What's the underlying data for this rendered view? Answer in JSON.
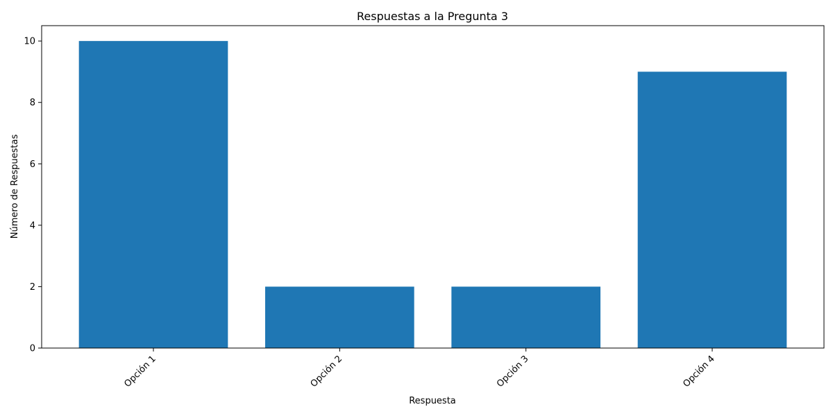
{
  "chart_data": {
    "type": "bar",
    "title": "Respuestas a la Pregunta 3",
    "xlabel": "Respuesta",
    "ylabel": "Número de Respuestas",
    "categories": [
      "Opción 1",
      "Opción 2",
      "Opción 3",
      "Opción 4"
    ],
    "values": [
      10,
      2,
      2,
      9
    ],
    "ylim": [
      0,
      10.5
    ],
    "yticks": [
      0,
      2,
      4,
      6,
      8,
      10
    ],
    "bar_color": "#1f77b4",
    "grid": false,
    "legend": "none"
  }
}
